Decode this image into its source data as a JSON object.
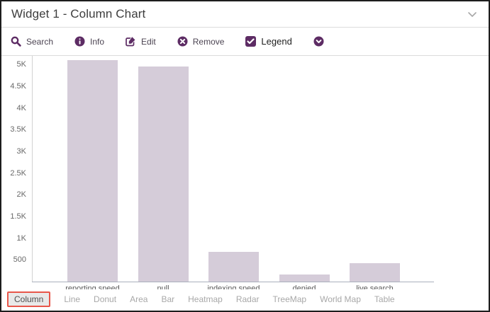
{
  "theme": {
    "accent": "#5d2c64",
    "bar-color": "#d5ccd9",
    "tab-active-border": "#e8564a"
  },
  "header": {
    "title": "Widget 1 - Column Chart"
  },
  "toolbar": {
    "items": [
      {
        "icon": "search-icon",
        "label": "Search"
      },
      {
        "icon": "info-icon",
        "label": "Info"
      },
      {
        "icon": "edit-icon",
        "label": "Edit"
      },
      {
        "icon": "remove-icon",
        "label": "Remove"
      }
    ],
    "legend_toggle": {
      "label": "Legend",
      "checked": true
    },
    "more_icon": "chevron-down-circle-icon"
  },
  "chart_data": {
    "type": "bar",
    "title": "",
    "xlabel": "",
    "ylabel": "",
    "categories": [
      "reporting speed",
      "null",
      "indexing speed",
      "denied",
      "live search"
    ],
    "values": [
      5100,
      4950,
      690,
      160,
      420
    ],
    "ylim": [
      0,
      5200
    ],
    "yticks": [
      500,
      1000,
      1500,
      2000,
      2500,
      3000,
      3500,
      4000,
      4500,
      5000
    ],
    "ytick_labels": [
      "500",
      "1K",
      "1.5K",
      "2K",
      "2.5K",
      "3K",
      "3.5K",
      "4K",
      "4.5K",
      "5K"
    ],
    "grid": false,
    "legend_position": "none",
    "x_labels_clipped": true
  },
  "tabs": {
    "items": [
      {
        "label": "Column",
        "active": true
      },
      {
        "label": "Line",
        "active": false
      },
      {
        "label": "Donut",
        "active": false
      },
      {
        "label": "Area",
        "active": false
      },
      {
        "label": "Bar",
        "active": false
      },
      {
        "label": "Heatmap",
        "active": false
      },
      {
        "label": "Radar",
        "active": false
      },
      {
        "label": "TreeMap",
        "active": false
      },
      {
        "label": "World Map",
        "active": false
      },
      {
        "label": "Table",
        "active": false
      }
    ]
  }
}
